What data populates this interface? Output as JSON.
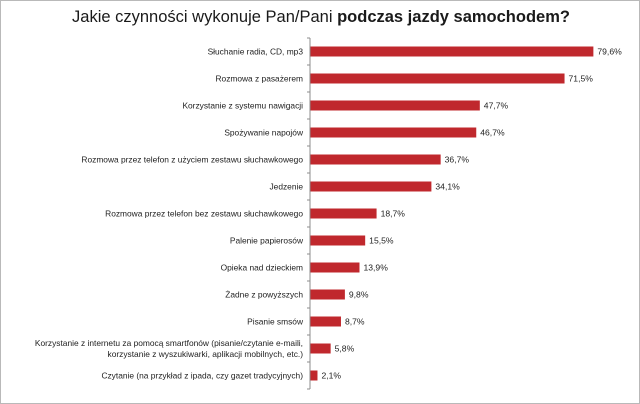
{
  "title": {
    "normal": "Jakie czynności wykonuje Pan/Pani ",
    "bold": "podczas jazdy samochodem?"
  },
  "chart_data": {
    "type": "bar",
    "orientation": "horizontal",
    "title": "Jakie czynności wykonuje Pan/Pani podczas jazdy samochodem?",
    "xlabel": "",
    "ylabel": "",
    "xlim": [
      0,
      100
    ],
    "grid": false,
    "legend": "none",
    "bar_color": "#c0282d",
    "categories": [
      [
        "Słuchanie radia, CD, mp3"
      ],
      [
        "Rozmowa z pasażerem"
      ],
      [
        "Korzystanie z systemu nawigacji"
      ],
      [
        "Spożywanie napojów"
      ],
      [
        "Rozmowa przez telefon z użyciem zestawu słuchawkowego"
      ],
      [
        "Jedzenie"
      ],
      [
        "Rozmowa przez telefon bez zestawu słuchawkowego"
      ],
      [
        "Palenie papierosów"
      ],
      [
        "Opieka nad dzieckiem"
      ],
      [
        "Żadne z powyższych"
      ],
      [
        "Pisanie smsów"
      ],
      [
        "Korzystanie z internetu za pomocą smartfonów (pisanie/czytanie e-maili,",
        "korzystanie z wyszukiwarki, aplikacji mobilnych, etc.)"
      ],
      [
        "Czytanie (na przykład z ipada, czy gazet tradycyjnych)"
      ]
    ],
    "values": [
      79.6,
      71.5,
      47.7,
      46.7,
      36.7,
      34.1,
      18.7,
      15.5,
      13.9,
      9.8,
      8.7,
      5.8,
      2.1
    ],
    "value_labels": [
      "79,6%",
      "71,5%",
      "47,7%",
      "46,7%",
      "36,7%",
      "34,1%",
      "18,7%",
      "15,5%",
      "13,9%",
      "9,8%",
      "8,7%",
      "5,8%",
      "2,1%"
    ]
  }
}
